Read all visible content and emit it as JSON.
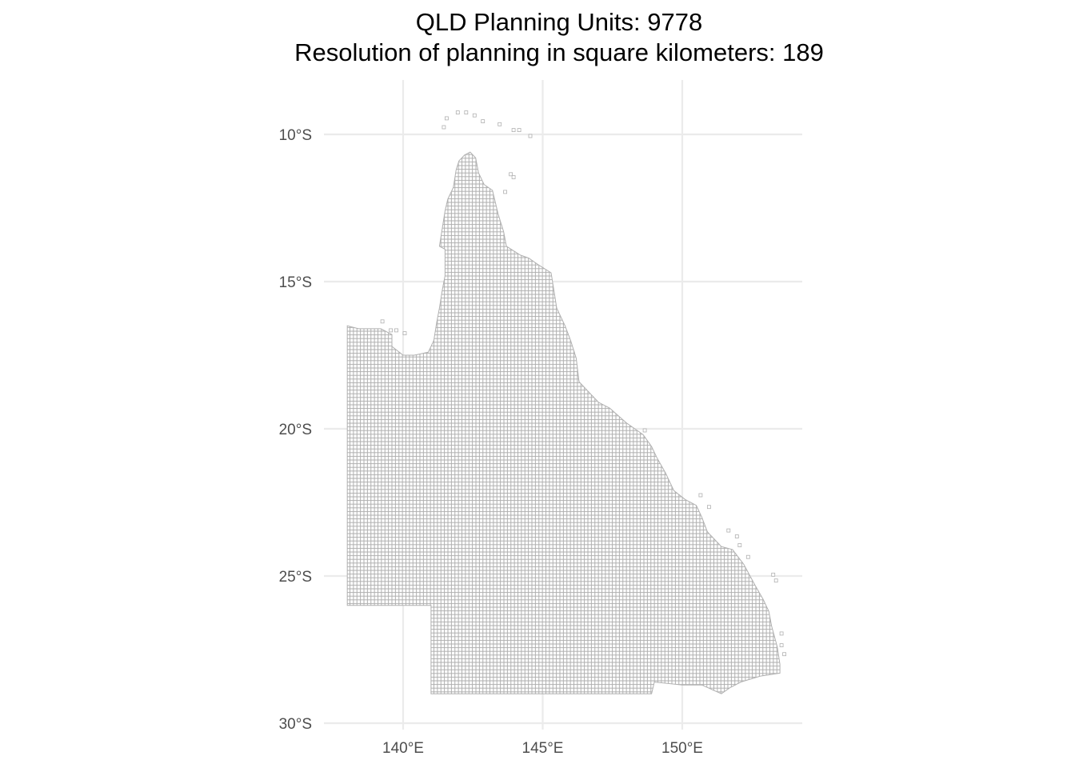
{
  "title": "QLD Planning Units: 9778",
  "subtitle": "Resolution of planning in square kilometers: 189",
  "chart_data": {
    "type": "map",
    "x_ticks": [
      {
        "value": 140,
        "label": "140°E"
      },
      {
        "value": 145,
        "label": "145°E"
      },
      {
        "value": 150,
        "label": "150°E"
      }
    ],
    "y_ticks": [
      {
        "value": -10,
        "label": "10°S"
      },
      {
        "value": -15,
        "label": "15°S"
      },
      {
        "value": -20,
        "label": "20°S"
      },
      {
        "value": -25,
        "label": "25°S"
      },
      {
        "value": -30,
        "label": "30°S"
      }
    ],
    "xlim": [
      136.6,
      154.0
    ],
    "ylim": [
      -30.0,
      -9.0
    ],
    "grid": true,
    "colors": {
      "cell_stroke": "#b0b0b0",
      "cell_fill": "#ffffff",
      "grid": "#ebebeb"
    },
    "grid_cell_size_deg": 0.125,
    "outline": [
      [
        138.0,
        -16.5
      ],
      [
        138.4,
        -16.6
      ],
      [
        139.2,
        -16.6
      ],
      [
        139.6,
        -16.8
      ],
      [
        139.6,
        -17.2
      ],
      [
        140.0,
        -17.5
      ],
      [
        140.4,
        -17.5
      ],
      [
        140.9,
        -17.4
      ],
      [
        141.1,
        -17.0
      ],
      [
        141.2,
        -16.4
      ],
      [
        141.3,
        -15.9
      ],
      [
        141.4,
        -15.3
      ],
      [
        141.5,
        -14.8
      ],
      [
        141.5,
        -13.9
      ],
      [
        141.3,
        -13.8
      ],
      [
        141.4,
        -13.2
      ],
      [
        141.5,
        -12.6
      ],
      [
        141.6,
        -12.2
      ],
      [
        141.8,
        -11.8
      ],
      [
        141.9,
        -11.2
      ],
      [
        142.0,
        -10.9
      ],
      [
        142.2,
        -10.7
      ],
      [
        142.4,
        -10.6
      ],
      [
        142.6,
        -10.8
      ],
      [
        142.7,
        -11.3
      ],
      [
        142.9,
        -11.7
      ],
      [
        143.2,
        -11.9
      ],
      [
        143.3,
        -12.3
      ],
      [
        143.4,
        -12.7
      ],
      [
        143.6,
        -13.3
      ],
      [
        143.7,
        -13.8
      ],
      [
        144.2,
        -14.1
      ],
      [
        144.5,
        -14.2
      ],
      [
        144.8,
        -14.4
      ],
      [
        145.3,
        -14.7
      ],
      [
        145.4,
        -15.3
      ],
      [
        145.5,
        -15.9
      ],
      [
        145.8,
        -16.5
      ],
      [
        146.0,
        -17.0
      ],
      [
        146.2,
        -17.6
      ],
      [
        146.3,
        -18.4
      ],
      [
        146.7,
        -18.8
      ],
      [
        147.0,
        -19.1
      ],
      [
        147.4,
        -19.3
      ],
      [
        148.0,
        -19.8
      ],
      [
        148.6,
        -20.2
      ],
      [
        148.9,
        -20.6
      ],
      [
        149.1,
        -21.0
      ],
      [
        149.4,
        -21.5
      ],
      [
        149.7,
        -22.1
      ],
      [
        150.1,
        -22.4
      ],
      [
        150.5,
        -22.6
      ],
      [
        150.7,
        -23.0
      ],
      [
        150.9,
        -23.5
      ],
      [
        151.4,
        -24.0
      ],
      [
        151.8,
        -24.1
      ],
      [
        152.2,
        -24.6
      ],
      [
        152.6,
        -25.3
      ],
      [
        152.9,
        -25.8
      ],
      [
        153.1,
        -26.2
      ],
      [
        153.2,
        -26.7
      ],
      [
        153.4,
        -27.4
      ],
      [
        153.5,
        -28.0
      ],
      [
        153.5,
        -28.3
      ],
      [
        152.8,
        -28.4
      ],
      [
        152.1,
        -28.6
      ],
      [
        151.7,
        -28.8
      ],
      [
        151.4,
        -29.0
      ],
      [
        150.7,
        -28.7
      ],
      [
        150.0,
        -28.7
      ],
      [
        149.0,
        -28.6
      ],
      [
        148.9,
        -29.0
      ],
      [
        146.8,
        -29.0
      ],
      [
        141.0,
        -29.0
      ],
      [
        141.0,
        -26.0
      ],
      [
        138.0,
        -26.0
      ]
    ],
    "islands": [
      [
        141.9,
        -9.2
      ],
      [
        142.2,
        -9.2
      ],
      [
        142.5,
        -9.3
      ],
      [
        142.8,
        -9.5
      ],
      [
        143.4,
        -9.6
      ],
      [
        143.9,
        -9.8
      ],
      [
        144.1,
        -9.8
      ],
      [
        141.4,
        -9.7
      ],
      [
        141.5,
        -9.4
      ],
      [
        144.5,
        -10.0
      ],
      [
        143.8,
        -11.3
      ],
      [
        143.9,
        -11.4
      ],
      [
        143.6,
        -11.9
      ],
      [
        139.2,
        -16.3
      ],
      [
        139.5,
        -16.6
      ],
      [
        139.7,
        -16.6
      ],
      [
        140.0,
        -16.7
      ],
      [
        148.6,
        -20.0
      ],
      [
        150.6,
        -22.2
      ],
      [
        150.9,
        -22.6
      ],
      [
        151.6,
        -23.4
      ],
      [
        151.9,
        -23.6
      ],
      [
        152.0,
        -23.9
      ],
      [
        152.3,
        -24.3
      ],
      [
        153.2,
        -24.9
      ],
      [
        153.3,
        -25.1
      ],
      [
        153.5,
        -26.9
      ],
      [
        153.5,
        -27.3
      ],
      [
        153.6,
        -27.6
      ]
    ]
  }
}
